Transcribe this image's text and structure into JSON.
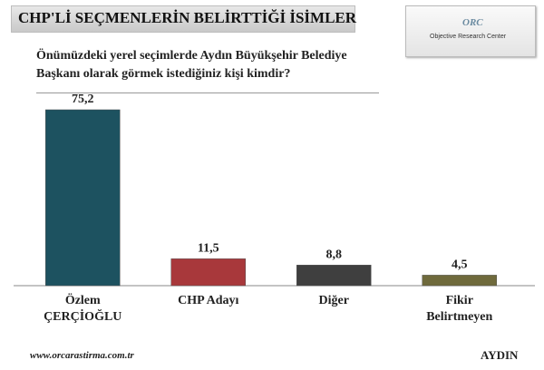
{
  "chart_data": {
    "type": "bar",
    "title": "CHP'Lİ SEÇMENLERİN BELİRTTİĞİ İSİMLER",
    "subtitle": "Önümüzdeki yerel seçimlerde Aydın Büyükşehir Belediye Başkanı olarak görmek istediğiniz kişi kimdir?",
    "logo_text": "ORC",
    "logo_subtitle": "Objective Research Center",
    "categories": [
      "Özlem ÇERÇİOĞLU",
      "CHP Adayı",
      "Diğer",
      "Fikir Belirtmeyen"
    ],
    "values": [
      75.2,
      11.5,
      8.8,
      4.5
    ],
    "value_labels": [
      "75,2",
      "11,5",
      "8,8",
      "4,5"
    ],
    "colors": [
      "#1d5260",
      "#a8383b",
      "#3f3f3f",
      "#6f6a3c"
    ],
    "source": "www.orcarastirma.com.tr",
    "region": "AYDIN"
  }
}
